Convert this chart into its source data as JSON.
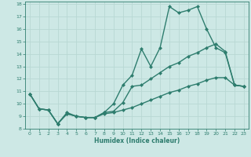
{
  "xlabel": "Humidex (Indice chaleur)",
  "bg_color": "#cde8e5",
  "grid_color": "#b8d8d4",
  "line_color": "#2e7d6e",
  "xlim": [
    -0.5,
    23.5
  ],
  "ylim": [
    8,
    18.2
  ],
  "xticks": [
    0,
    1,
    2,
    3,
    4,
    5,
    6,
    7,
    8,
    9,
    10,
    11,
    12,
    13,
    14,
    15,
    16,
    17,
    18,
    19,
    20,
    21,
    22,
    23
  ],
  "yticks": [
    8,
    9,
    10,
    11,
    12,
    13,
    14,
    15,
    16,
    17,
    18
  ],
  "line1_x": [
    0,
    1,
    2,
    3,
    4,
    5,
    6,
    7,
    8,
    9,
    10,
    11,
    12,
    13,
    14,
    15,
    16,
    17,
    18,
    19,
    20,
    21,
    22,
    23
  ],
  "line1_y": [
    10.8,
    9.6,
    9.5,
    8.4,
    9.3,
    9.0,
    8.9,
    8.9,
    9.3,
    10.0,
    11.5,
    12.3,
    14.4,
    13.0,
    14.5,
    17.8,
    17.3,
    17.5,
    17.8,
    16.0,
    14.5,
    14.1,
    11.5,
    11.4
  ],
  "line2_x": [
    0,
    1,
    2,
    3,
    4,
    5,
    6,
    7,
    8,
    9,
    10,
    11,
    12,
    13,
    14,
    15,
    16,
    17,
    18,
    19,
    20,
    21,
    22,
    23
  ],
  "line2_y": [
    10.8,
    9.6,
    9.5,
    8.4,
    9.2,
    9.0,
    8.9,
    8.9,
    9.3,
    9.4,
    10.1,
    11.4,
    11.5,
    12.0,
    12.5,
    13.0,
    13.3,
    13.8,
    14.1,
    14.5,
    14.8,
    14.2,
    11.5,
    11.4
  ],
  "line3_x": [
    0,
    1,
    2,
    3,
    4,
    5,
    6,
    7,
    8,
    9,
    10,
    11,
    12,
    13,
    14,
    15,
    16,
    17,
    18,
    19,
    20,
    21,
    22,
    23
  ],
  "line3_y": [
    10.8,
    9.6,
    9.5,
    8.4,
    9.2,
    9.0,
    8.9,
    8.9,
    9.2,
    9.3,
    9.5,
    9.7,
    10.0,
    10.3,
    10.6,
    10.9,
    11.1,
    11.4,
    11.6,
    11.9,
    12.1,
    12.1,
    11.5,
    11.4
  ],
  "markersize": 2.5,
  "linewidth": 1.0
}
